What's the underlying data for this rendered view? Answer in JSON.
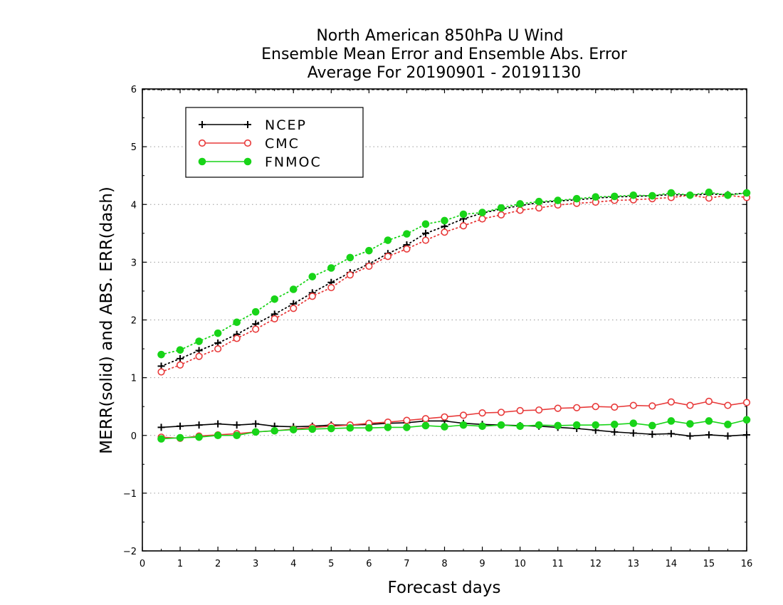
{
  "chart_data": {
    "type": "line",
    "title": [
      "North American 850hPa U Wind",
      "Ensemble Mean Error and Ensemble Abs. Error",
      "Average For 20190901 - 20191130"
    ],
    "xlabel": "Forecast days",
    "ylabel": "MERR(solid) and ABS. ERR(dash)",
    "xlim": [
      0,
      16
    ],
    "ylim": [
      -2,
      6
    ],
    "xticks": [
      "0",
      "1",
      "2",
      "3",
      "4",
      "5",
      "6",
      "7",
      "8",
      "9",
      "10",
      "11",
      "12",
      "13",
      "14",
      "15",
      "16"
    ],
    "yticks": [
      "−2",
      "−1",
      "0",
      "1",
      "2",
      "3",
      "4",
      "5",
      "6"
    ],
    "grid": "horizontal dotted",
    "legend_position": "top-left",
    "x": [
      0.5,
      1.0,
      1.5,
      2.0,
      2.5,
      3.0,
      3.5,
      4.0,
      4.5,
      5.0,
      5.5,
      6.0,
      6.5,
      7.0,
      7.5,
      8.0,
      8.5,
      9.0,
      9.5,
      10.0,
      10.5,
      11.0,
      11.5,
      12.0,
      12.5,
      13.0,
      13.5,
      14.0,
      14.5,
      15.0,
      15.5,
      16.0
    ],
    "series": [
      {
        "name": "NCEP",
        "color": "#000000",
        "marker": "plus",
        "merr": [
          0.14,
          0.16,
          0.18,
          0.2,
          0.18,
          0.2,
          0.16,
          0.15,
          0.16,
          0.18,
          0.18,
          0.19,
          0.21,
          0.22,
          0.25,
          0.25,
          0.21,
          0.19,
          0.18,
          0.17,
          0.16,
          0.14,
          0.12,
          0.09,
          0.06,
          0.04,
          0.02,
          0.03,
          -0.01,
          0.01,
          -0.01,
          0.01
        ],
        "abs_err": [
          1.2,
          1.33,
          1.47,
          1.6,
          1.75,
          1.93,
          2.1,
          2.28,
          2.47,
          2.65,
          2.82,
          2.97,
          3.15,
          3.3,
          3.5,
          3.62,
          3.75,
          3.85,
          3.92,
          3.98,
          4.03,
          4.06,
          4.08,
          4.11,
          4.13,
          4.14,
          4.15,
          4.17,
          4.16,
          4.18,
          4.17,
          4.2
        ]
      },
      {
        "name": "CMC",
        "color": "#e83a3a",
        "marker": "open-circle",
        "merr": [
          -0.03,
          -0.05,
          -0.01,
          0.01,
          0.03,
          0.06,
          0.08,
          0.11,
          0.14,
          0.16,
          0.18,
          0.21,
          0.23,
          0.26,
          0.29,
          0.32,
          0.35,
          0.39,
          0.4,
          0.43,
          0.44,
          0.47,
          0.48,
          0.5,
          0.49,
          0.52,
          0.51,
          0.58,
          0.52,
          0.59,
          0.52,
          0.57
        ],
        "abs_err": [
          1.1,
          1.22,
          1.37,
          1.5,
          1.68,
          1.84,
          2.02,
          2.2,
          2.41,
          2.56,
          2.78,
          2.93,
          3.1,
          3.23,
          3.38,
          3.52,
          3.63,
          3.75,
          3.82,
          3.9,
          3.94,
          3.99,
          4.02,
          4.04,
          4.07,
          4.08,
          4.1,
          4.12,
          4.16,
          4.11,
          4.16,
          4.12
        ]
      },
      {
        "name": "FNMOC",
        "color": "#18d418",
        "marker": "filled-circle",
        "merr": [
          -0.06,
          -0.04,
          -0.03,
          0.0,
          0.0,
          0.06,
          0.08,
          0.1,
          0.11,
          0.12,
          0.13,
          0.13,
          0.14,
          0.14,
          0.17,
          0.15,
          0.18,
          0.16,
          0.18,
          0.16,
          0.18,
          0.17,
          0.18,
          0.18,
          0.19,
          0.21,
          0.17,
          0.25,
          0.2,
          0.25,
          0.19,
          0.27
        ],
        "abs_err": [
          1.4,
          1.48,
          1.63,
          1.77,
          1.96,
          2.14,
          2.36,
          2.53,
          2.75,
          2.9,
          3.08,
          3.2,
          3.38,
          3.49,
          3.66,
          3.72,
          3.83,
          3.86,
          3.94,
          4.01,
          4.05,
          4.07,
          4.1,
          4.13,
          4.14,
          4.16,
          4.15,
          4.2,
          4.16,
          4.21,
          4.16,
          4.2
        ]
      }
    ]
  }
}
